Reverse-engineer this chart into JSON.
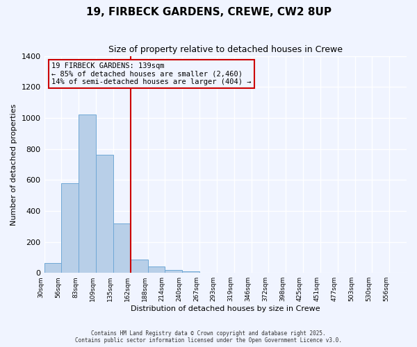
{
  "title": "19, FIRBECK GARDENS, CREWE, CW2 8UP",
  "subtitle": "Size of property relative to detached houses in Crewe",
  "xlabel": "Distribution of detached houses by size in Crewe",
  "ylabel": "Number of detached properties",
  "footer_lines": [
    "Contains HM Land Registry data © Crown copyright and database right 2025.",
    "Contains public sector information licensed under the Open Government Licence v3.0."
  ],
  "bin_labels": [
    "30sqm",
    "56sqm",
    "83sqm",
    "109sqm",
    "135sqm",
    "162sqm",
    "188sqm",
    "214sqm",
    "240sqm",
    "267sqm",
    "293sqm",
    "319sqm",
    "346sqm",
    "372sqm",
    "398sqm",
    "425sqm",
    "451sqm",
    "477sqm",
    "503sqm",
    "530sqm",
    "556sqm"
  ],
  "bar_values": [
    65,
    580,
    1020,
    760,
    320,
    85,
    40,
    20,
    8,
    0,
    0,
    0,
    0,
    0,
    0,
    0,
    0,
    0,
    0,
    0
  ],
  "bar_color": "#b8cfe8",
  "bar_edgecolor": "#6fa8d6",
  "ylim": [
    0,
    1400
  ],
  "yticks": [
    0,
    200,
    400,
    600,
    800,
    1000,
    1200,
    1400
  ],
  "property_size": 139,
  "property_line_x": 4,
  "annotation_title": "19 FIRBECK GARDENS: 139sqm",
  "annotation_line1": "← 85% of detached houses are smaller (2,460)",
  "annotation_line2": "14% of semi-detached houses are larger (404) →",
  "vline_color": "#cc0000",
  "annotation_box_edgecolor": "#cc0000",
  "background_color": "#f0f4ff",
  "grid_color": "#ffffff"
}
